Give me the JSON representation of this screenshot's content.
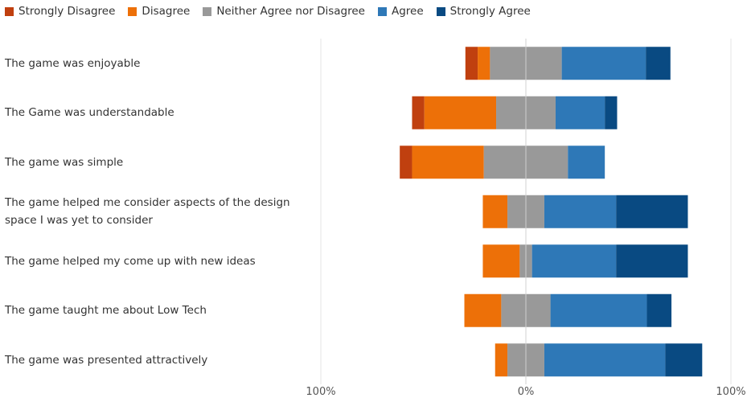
{
  "chart_data": {
    "type": "bar",
    "orientation": "horizontal",
    "stacked": "diverging",
    "legend": {
      "position": "top-left",
      "items": [
        {
          "key": "sd",
          "label": "Strongly Disagree",
          "color": "#c0400f"
        },
        {
          "key": "d",
          "label": "Disagree",
          "color": "#ed7008"
        },
        {
          "key": "n",
          "label": "Neither Agree nor Disagree",
          "color": "#999999"
        },
        {
          "key": "a",
          "label": "Agree",
          "color": "#2e78b7"
        },
        {
          "key": "sa",
          "label": "Strongly Agree",
          "color": "#094a82"
        }
      ]
    },
    "categories": [
      [
        "The game was enjoyable"
      ],
      [
        "The Game was understandable"
      ],
      [
        "The game was simple"
      ],
      [
        "The game helped me consider aspects of the design",
        "space I was yet to consider"
      ],
      [
        "The game helped my come up with new ideas"
      ],
      [
        "The game taught me about Low Tech"
      ],
      [
        "The game was presented attractively"
      ]
    ],
    "series": [
      {
        "key": "sd",
        "name": "Strongly Disagree",
        "values": [
          6,
          6,
          6,
          0,
          0,
          0,
          0
        ]
      },
      {
        "key": "d",
        "name": "Disagree",
        "values": [
          6,
          35,
          35,
          12,
          18,
          18,
          6
        ]
      },
      {
        "key": "n",
        "name": "Neither Agree nor Disagree",
        "values": [
          35,
          29,
          41,
          18,
          6,
          24,
          18
        ]
      },
      {
        "key": "a",
        "name": "Agree",
        "values": [
          41,
          24,
          18,
          35,
          41,
          47,
          59
        ]
      },
      {
        "key": "sa",
        "name": "Strongly Agree",
        "values": [
          12,
          6,
          0,
          35,
          35,
          12,
          18
        ]
      }
    ],
    "xlim": [
      -100,
      100
    ],
    "x_ticks": [
      "100%",
      "0%",
      "100%"
    ],
    "grid": "center-line"
  }
}
